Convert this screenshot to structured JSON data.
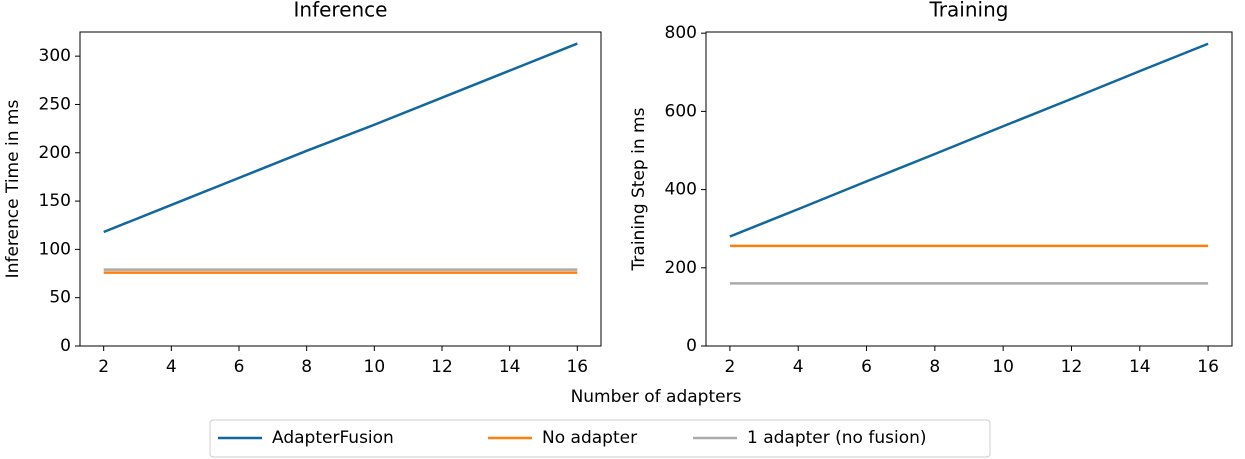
{
  "chart_data": [
    {
      "type": "line",
      "title": "Inference",
      "ylabel": "Inference Time in ms",
      "x": [
        2,
        4,
        6,
        8,
        10,
        12,
        14,
        16
      ],
      "series": [
        {
          "name": "AdapterFusion",
          "color": "#11679e",
          "values": [
            118,
            146,
            174,
            202,
            229,
            257,
            285,
            313
          ]
        },
        {
          "name": "No adapter",
          "color": "#ff7f0e",
          "values": [
            76,
            76,
            76,
            76,
            76,
            76,
            76,
            76
          ]
        },
        {
          "name": "1 adapter (no fusion)",
          "color": "#aaaaaa",
          "values": [
            79,
            79,
            79,
            79,
            79,
            79,
            79,
            79
          ]
        }
      ],
      "xlim": [
        1.3,
        16.7
      ],
      "xticks": [
        2,
        4,
        6,
        8,
        10,
        12,
        14,
        16
      ],
      "ylim": [
        0,
        325
      ],
      "yticks": [
        0,
        50,
        100,
        150,
        200,
        250,
        300
      ]
    },
    {
      "type": "line",
      "title": "Training",
      "ylabel": "Training Step in ms",
      "x": [
        2,
        4,
        6,
        8,
        10,
        12,
        14,
        16
      ],
      "series": [
        {
          "name": "AdapterFusion",
          "color": "#11679e",
          "values": [
            280,
            350,
            421,
            491,
            562,
            632,
            703,
            773
          ]
        },
        {
          "name": "No adapter",
          "color": "#ff7f0e",
          "values": [
            256,
            256,
            256,
            256,
            256,
            256,
            256,
            256
          ]
        },
        {
          "name": "1 adapter (no fusion)",
          "color": "#aaaaaa",
          "values": [
            160,
            160,
            160,
            160,
            160,
            160,
            160,
            160
          ]
        }
      ],
      "xlim": [
        1.3,
        16.7
      ],
      "xticks": [
        2,
        4,
        6,
        8,
        10,
        12,
        14,
        16
      ],
      "ylim": [
        0,
        803
      ],
      "yticks": [
        0,
        200,
        400,
        600,
        800
      ]
    }
  ],
  "xlabel": "Number of adapters"
}
